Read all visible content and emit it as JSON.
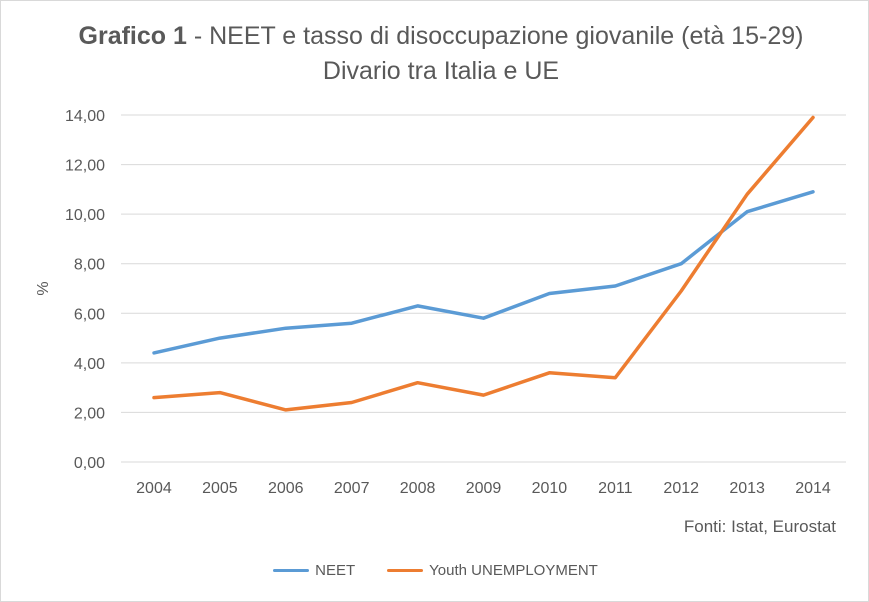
{
  "title": {
    "bold": "Grafico 1",
    "rest": " - NEET e tasso di disoccupazione giovanile (età 15-29) Divario tra Italia e UE"
  },
  "source": "Fonti: Istat, Eurostat",
  "colors": {
    "neet": "#5b9bd5",
    "youth_unemployment": "#ed7d31",
    "grid": "#d9d9d9",
    "text": "#595959"
  },
  "chart_data": {
    "type": "line",
    "x": [
      "2004",
      "2005",
      "2006",
      "2007",
      "2008",
      "2009",
      "2010",
      "2011",
      "2012",
      "2013",
      "2014"
    ],
    "series": [
      {
        "name": "NEET",
        "values": [
          4.4,
          5.0,
          5.4,
          5.6,
          6.3,
          5.8,
          6.8,
          7.1,
          8.0,
          10.1,
          10.9
        ]
      },
      {
        "name": "Youth UNEMPLOYMENT",
        "values": [
          2.6,
          2.8,
          2.1,
          2.4,
          3.2,
          2.7,
          3.6,
          3.4,
          6.9,
          10.8,
          13.9
        ]
      }
    ],
    "ylabel": "%",
    "ylim": [
      0,
      14
    ],
    "yticks": [
      "0,00",
      "2,00",
      "4,00",
      "6,00",
      "8,00",
      "10,00",
      "12,00",
      "14,00"
    ],
    "grid": true,
    "legend": "bottom"
  }
}
